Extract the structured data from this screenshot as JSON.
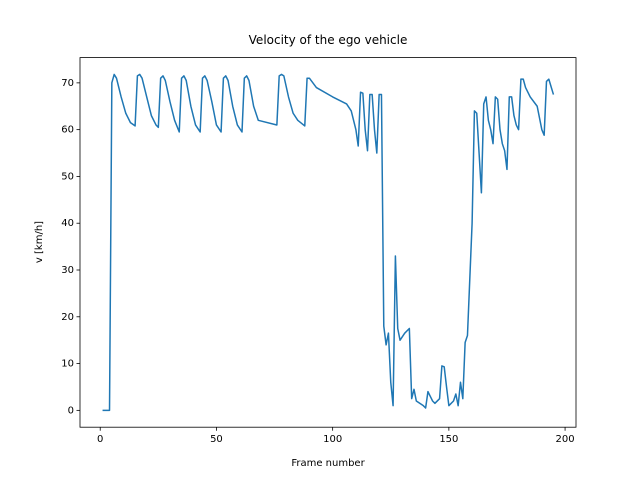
{
  "chart_data": {
    "type": "line",
    "title": "Velocity of the ego vehicle",
    "x_label": "Frame number",
    "y_label": "v [km/h]",
    "series": [
      {
        "color": "#1f77b4",
        "x": [
          1,
          4,
          5,
          6,
          7,
          9,
          11,
          13,
          15,
          16,
          17,
          18,
          20,
          22,
          24,
          25,
          26,
          27,
          28,
          30,
          32,
          34,
          35,
          36,
          37,
          39,
          41,
          43,
          44,
          45,
          46,
          48,
          50,
          52,
          53,
          54,
          55,
          57,
          59,
          61,
          62,
          63,
          64,
          66,
          68,
          76,
          77,
          78,
          79,
          81,
          83,
          85,
          88,
          89,
          90,
          93,
          100,
          106,
          108,
          110,
          111,
          112,
          113,
          114,
          115,
          116,
          117,
          118,
          119,
          120,
          121,
          122,
          123,
          124,
          125,
          126,
          127,
          128,
          129,
          131,
          133,
          134,
          135,
          136,
          139,
          140,
          141,
          142,
          143,
          144,
          146,
          147,
          148,
          149,
          150,
          152,
          153,
          154,
          155,
          156,
          157,
          158,
          160,
          161,
          162,
          163,
          164,
          165,
          166,
          167,
          168,
          169,
          170,
          171,
          172,
          173,
          174,
          175,
          176,
          177,
          178,
          179,
          180,
          181,
          182,
          183,
          185,
          188,
          190,
          191,
          192,
          193,
          195
        ],
        "values": [
          0,
          0,
          70,
          71.8,
          71,
          67,
          63.5,
          61.5,
          60.8,
          71.5,
          71.8,
          71,
          67,
          63,
          61,
          60.5,
          71,
          71.5,
          70.5,
          66,
          62,
          59.5,
          71,
          71.5,
          70.5,
          65,
          61,
          59.5,
          71,
          71.5,
          70.5,
          66,
          61,
          59.5,
          71,
          71.5,
          70.5,
          65,
          61,
          59.5,
          71,
          71.5,
          70.5,
          65,
          62,
          61,
          71.5,
          71.8,
          71.5,
          67,
          63.5,
          62,
          60.8,
          71,
          71,
          69,
          67,
          65.5,
          64,
          60,
          56.5,
          68,
          67.8,
          60,
          55.5,
          67.5,
          67.5,
          60,
          55,
          67.5,
          67.5,
          18,
          14,
          16.5,
          6,
          1,
          33,
          17.5,
          15,
          16.5,
          17.5,
          2.5,
          4.5,
          2,
          1,
          0.5,
          4,
          3,
          2,
          1.5,
          2.5,
          9.5,
          9.3,
          5,
          1,
          2,
          3.5,
          1,
          6,
          2.5,
          14.5,
          16,
          40,
          64,
          63.5,
          55,
          46.5,
          65.5,
          67,
          62,
          60,
          57,
          67,
          66.5,
          60,
          57,
          55.5,
          51.5,
          67,
          67,
          63,
          61,
          60,
          70.8,
          70.8,
          69,
          67,
          65,
          60,
          58.8,
          70.3,
          70.8,
          67.5
        ]
      }
    ],
    "xlim": [
      -8.7,
      204.7
    ],
    "xticks": [
      0,
      50,
      100,
      150,
      200
    ],
    "ylim": [
      -3.6,
      75.4
    ],
    "yticks": [
      0,
      10,
      20,
      30,
      40,
      50,
      60,
      70
    ]
  }
}
